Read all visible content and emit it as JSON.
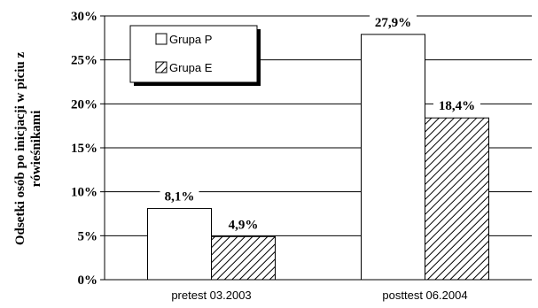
{
  "chart_data": {
    "type": "bar",
    "categories": [
      "pretest 03.2003",
      "posttest 06.2004"
    ],
    "series": [
      {
        "name": "Grupa P",
        "values": [
          8.1,
          27.9
        ],
        "labels": [
          "8,1%",
          "27,9%"
        ]
      },
      {
        "name": "Grupa E",
        "values": [
          4.9,
          18.4
        ],
        "labels": [
          "4,9%",
          "18,4%"
        ]
      }
    ],
    "ylabel_lines": [
      "Odsetki osób po inicjacji w piciu z",
      "rówieśnikami"
    ],
    "ylim": [
      0,
      30
    ],
    "yticks": [
      0,
      5,
      10,
      15,
      20,
      25,
      30
    ],
    "ytick_labels": [
      "0%",
      "5%",
      "10%",
      "15%",
      "20%",
      "25%",
      "30%"
    ],
    "grid": true,
    "legend_position": "top-left",
    "colors": {
      "grupa_p": "#ffffff",
      "grupa_e_hatch": "#000000"
    }
  }
}
